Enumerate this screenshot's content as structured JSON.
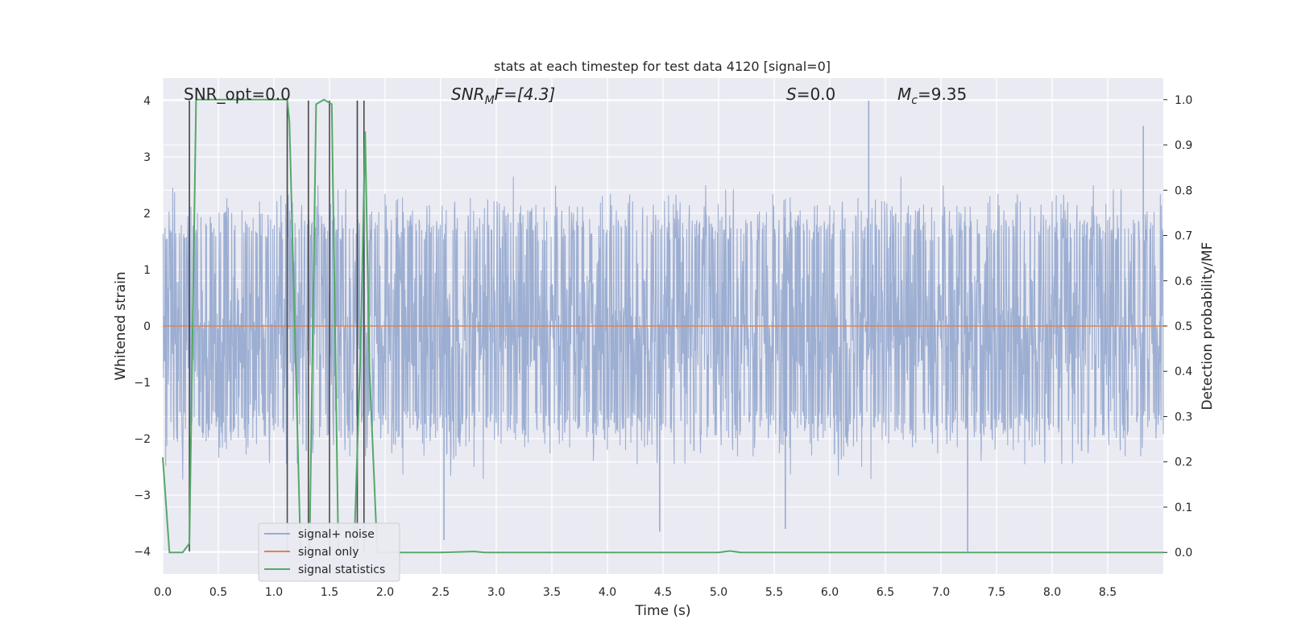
{
  "chart_data": {
    "type": "line",
    "title": "stats at each timestep for test data 4120 [signal=0]",
    "xlabel": "Time (s)",
    "ylabel": "Whitened strain",
    "y2label": "Detection probability/MF",
    "xlim": [
      0.0,
      9.0
    ],
    "ylim": [
      -4.4,
      4.4
    ],
    "y2lim": [
      -0.0476,
      1.0476
    ],
    "xticks": [
      "0.0",
      "0.5",
      "1.0",
      "1.5",
      "2.0",
      "2.5",
      "3.0",
      "3.5",
      "4.0",
      "4.5",
      "5.0",
      "5.5",
      "6.0",
      "6.5",
      "7.0",
      "7.5",
      "8.0",
      "8.5"
    ],
    "yticks": [
      "4",
      "3",
      "2",
      "1",
      "0",
      "−1",
      "−2",
      "−3",
      "−4"
    ],
    "y2ticks": [
      "1.0",
      "0.9",
      "0.8",
      "0.7",
      "0.6",
      "0.5",
      "0.4",
      "0.3",
      "0.2",
      "0.1",
      "0.0"
    ],
    "grid": true,
    "legend_position": "lower-left",
    "annotations": [
      {
        "label": "SNR_opt=0.0"
      },
      {
        "label": "SNR",
        "sub": "M",
        "tail": "F=[4.3]"
      },
      {
        "label": "S",
        "tail": "=0.0"
      },
      {
        "label": "M",
        "sub": "c",
        "tail": "=9.35"
      }
    ],
    "series": [
      {
        "name": "signal+ noise",
        "color": "#98abd0",
        "description": "dense whitened noise, approx band -2.3..2.5 with spikes",
        "spikes": [
          {
            "t": 0.24,
            "v": 4.0
          },
          {
            "t": 1.12,
            "v": 4.0
          },
          {
            "t": 1.31,
            "v": 4.0
          },
          {
            "t": 1.75,
            "v": 4.0
          },
          {
            "t": 1.81,
            "v": 3.4
          },
          {
            "t": 6.35,
            "v": 4.0
          },
          {
            "t": 7.24,
            "v": -4.0
          },
          {
            "t": 4.47,
            "v": -3.65
          },
          {
            "t": 2.53,
            "v": -3.8
          },
          {
            "t": 8.82,
            "v": 3.55
          },
          {
            "t": 5.6,
            "v": -3.6
          }
        ]
      },
      {
        "name": "signal only",
        "color": "#dd8452",
        "x": [
          0.0,
          9.0
        ],
        "y": [
          0.0,
          0.0
        ]
      },
      {
        "name": "signal statistics",
        "color": "#55a868",
        "axis": "right",
        "x": [
          0.0,
          0.06,
          0.18,
          0.24,
          0.3,
          0.5,
          1.0,
          1.12,
          1.14,
          1.24,
          1.32,
          1.38,
          1.45,
          1.52,
          1.58,
          1.72,
          1.78,
          1.82,
          1.86,
          1.93,
          2.5,
          2.8,
          2.9,
          5.0,
          5.1,
          5.2,
          9.0
        ],
        "y": [
          0.21,
          0.0,
          0.0,
          0.02,
          1.0,
          1.0,
          1.0,
          1.0,
          0.95,
          0.0,
          0.0,
          0.99,
          1.0,
          0.99,
          0.0,
          0.0,
          0.45,
          0.93,
          0.4,
          0.0,
          0.0,
          0.002,
          0.0,
          0.0,
          0.003,
          0.0,
          0.0
        ]
      }
    ],
    "detection_lines_x": [
      0.24,
      1.12,
      1.31,
      1.5,
      1.75,
      1.81
    ]
  }
}
